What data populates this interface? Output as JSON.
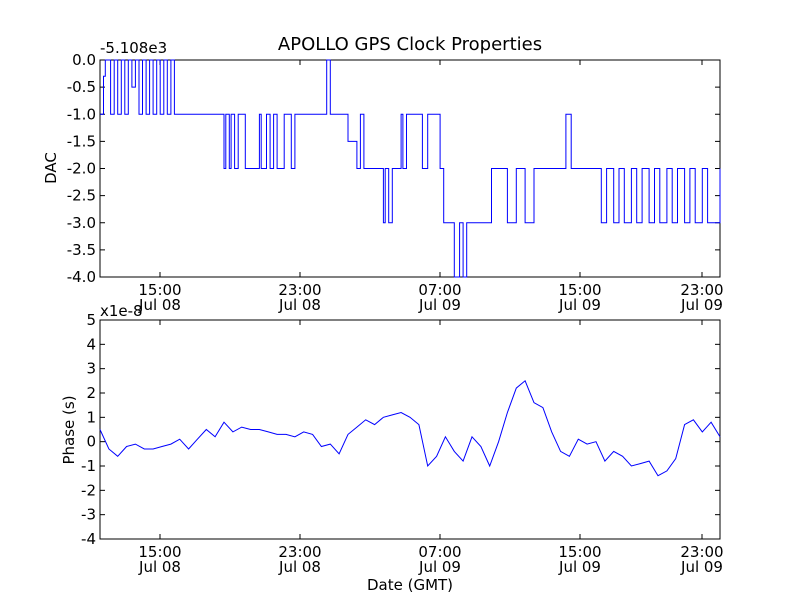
{
  "chart_data": [
    {
      "type": "line",
      "title": "APOLLO GPS Clock Properties",
      "ylabel": "DAC",
      "xlabel": "",
      "offset_label": "-5.108e3",
      "ylim": [
        -4.0,
        0.0
      ],
      "yticks": [
        "0.0",
        "-0.5",
        "-1.0",
        "-1.5",
        "-2.0",
        "-2.5",
        "-3.0",
        "-3.5",
        "-4.0"
      ],
      "x_tick_labels": [
        {
          "time": "15:00",
          "date": "Jul 08"
        },
        {
          "time": "23:00",
          "date": "Jul 08"
        },
        {
          "time": "07:00",
          "date": "Jul 09"
        },
        {
          "time": "15:00",
          "date": "Jul 09"
        },
        {
          "time": "23:00",
          "date": "Jul 09"
        }
      ],
      "color": "#0000ff",
      "grid": false,
      "series": [
        {
          "x_hours": [
            0.0,
            0.2,
            0.3,
            0.6,
            0.8,
            1.0,
            1.2,
            1.4,
            1.6,
            1.8,
            2.0,
            2.2,
            2.4,
            2.6,
            2.8,
            3.0,
            3.2,
            3.4,
            3.6,
            3.8,
            4.0,
            4.2,
            4.4,
            5.0,
            6.0,
            7.0,
            7.1,
            7.3,
            7.4,
            7.6,
            7.8,
            8.0,
            8.2,
            8.5,
            9.0,
            9.1,
            9.4,
            9.6,
            9.8,
            10.0,
            10.4,
            10.8,
            11.0,
            11.3,
            11.6,
            12.0,
            12.3,
            12.6,
            12.8,
            13.0,
            13.2,
            13.4,
            13.6,
            13.8,
            14.0,
            14.5,
            14.7,
            14.9,
            15.2,
            15.7,
            16.0,
            16.1,
            16.3,
            16.5,
            16.8,
            17.0,
            17.1,
            17.3,
            17.5,
            17.7,
            18.0,
            18.2,
            18.5,
            19.0,
            19.2,
            19.4,
            19.6,
            20.0,
            20.3,
            20.5,
            20.7,
            21.0,
            21.3,
            21.6,
            21.9,
            22.1,
            22.3,
            22.5,
            22.8,
            23.0,
            23.5,
            24.0,
            24.5,
            25.0,
            25.5,
            26.0,
            26.3,
            26.6,
            26.8,
            27.0,
            27.3,
            27.6,
            28.0,
            28.3,
            28.6,
            29.0,
            29.3,
            29.6,
            30.0,
            30.3,
            30.6,
            31.0,
            31.3,
            31.6,
            32.0,
            32.3,
            32.6,
            33.0,
            33.3,
            33.6,
            34.0,
            34.3,
            34.6,
            35.0
          ],
          "y": [
            -1.0,
            -0.3,
            0.0,
            -1.0,
            0.0,
            -1.0,
            0.0,
            -1.0,
            0.0,
            -0.5,
            0.0,
            -1.0,
            0.0,
            -1.0,
            0.0,
            -1.0,
            0.0,
            -1.0,
            0.0,
            -1.0,
            0.0,
            -1.0,
            -1.0,
            -1.0,
            -1.0,
            -2.0,
            -1.0,
            -2.0,
            -1.0,
            -2.0,
            -1.0,
            -1.0,
            -2.0,
            -2.0,
            -1.0,
            -2.0,
            -1.0,
            -2.0,
            -1.0,
            -2.0,
            -1.0,
            -2.0,
            -1.0,
            -1.0,
            -1.0,
            -1.0,
            -1.0,
            -1.0,
            0.0,
            -1.0,
            -1.0,
            -1.0,
            -1.0,
            -1.0,
            -1.5,
            -2.0,
            -1.0,
            -2.0,
            -2.0,
            -2.0,
            -3.0,
            -2.0,
            -3.0,
            -2.0,
            -2.0,
            -1.0,
            -2.0,
            -1.0,
            -1.0,
            -1.0,
            -1.0,
            -2.0,
            -1.0,
            -1.0,
            -2.0,
            -3.0,
            -3.0,
            -4.0,
            -3.0,
            -4.0,
            -3.0,
            -3.0,
            -3.0,
            -3.0,
            -3.0,
            -2.0,
            -2.0,
            -2.0,
            -2.0,
            -3.0,
            -2.0,
            -3.0,
            -2.0,
            -2.0,
            -2.0,
            -2.0,
            -1.0,
            -2.0,
            -2.0,
            -2.0,
            -2.0,
            -2.0,
            -2.0,
            -3.0,
            -2.0,
            -3.0,
            -2.0,
            -3.0,
            -2.0,
            -3.0,
            -2.0,
            -3.0,
            -2.0,
            -3.0,
            -2.0,
            -3.0,
            -2.0,
            -3.0,
            -2.0,
            -3.0,
            -2.0,
            -3.0,
            -3.0,
            -2.0
          ]
        }
      ]
    },
    {
      "type": "line",
      "title": "",
      "ylabel": "Phase (s)",
      "xlabel": "Date (GMT)",
      "offset_label": "x1e-8",
      "ylim": [
        -4,
        5
      ],
      "yticks": [
        "5",
        "4",
        "3",
        "2",
        "1",
        "0",
        "-1",
        "-2",
        "-3",
        "-4"
      ],
      "x_tick_labels": [
        {
          "time": "15:00",
          "date": "Jul 08"
        },
        {
          "time": "23:00",
          "date": "Jul 08"
        },
        {
          "time": "07:00",
          "date": "Jul 09"
        },
        {
          "time": "15:00",
          "date": "Jul 09"
        },
        {
          "time": "23:00",
          "date": "Jul 09"
        }
      ],
      "color": "#0000ff",
      "grid": false,
      "series": [
        {
          "x_hours": [
            0.0,
            0.5,
            1.0,
            1.5,
            2.0,
            2.5,
            3.0,
            3.5,
            4.0,
            4.5,
            5.0,
            5.5,
            6.0,
            6.5,
            7.0,
            7.5,
            8.0,
            8.5,
            9.0,
            9.5,
            10.0,
            10.5,
            11.0,
            11.5,
            12.0,
            12.5,
            13.0,
            13.5,
            14.0,
            14.5,
            15.0,
            15.5,
            16.0,
            16.5,
            17.0,
            17.5,
            18.0,
            18.5,
            19.0,
            19.5,
            20.0,
            20.5,
            21.0,
            21.5,
            22.0,
            22.5,
            23.0,
            23.5,
            24.0,
            24.5,
            25.0,
            25.5,
            26.0,
            26.5,
            27.0,
            27.5,
            28.0,
            28.5,
            29.0,
            29.5,
            30.0,
            30.5,
            31.0,
            31.5,
            32.0,
            32.5,
            33.0,
            33.5,
            34.0,
            34.5,
            35.0
          ],
          "y": [
            0.5,
            -0.3,
            -0.6,
            -0.2,
            -0.1,
            -0.3,
            -0.3,
            -0.2,
            -0.1,
            0.1,
            -0.3,
            0.1,
            0.5,
            0.2,
            0.8,
            0.4,
            0.6,
            0.5,
            0.5,
            0.4,
            0.3,
            0.3,
            0.2,
            0.4,
            0.3,
            -0.2,
            -0.1,
            -0.5,
            0.3,
            0.6,
            0.9,
            0.7,
            1.0,
            1.1,
            1.2,
            1.0,
            0.7,
            -1.0,
            -0.6,
            0.2,
            -0.4,
            -0.8,
            0.2,
            -0.2,
            -1.0,
            0.0,
            1.2,
            2.2,
            2.5,
            1.6,
            1.4,
            0.4,
            -0.4,
            -0.6,
            0.1,
            -0.1,
            0.0,
            -0.8,
            -0.4,
            -0.6,
            -1.0,
            -0.9,
            -0.8,
            -1.4,
            -1.2,
            -0.7,
            0.7,
            0.9,
            0.4,
            0.8,
            0.2
          ]
        }
      ]
    }
  ]
}
